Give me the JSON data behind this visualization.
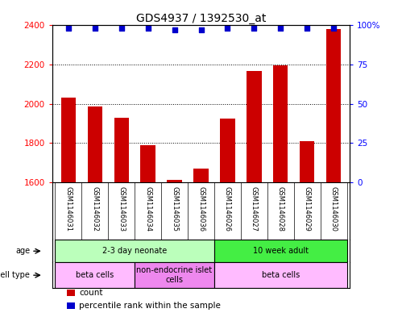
{
  "title": "GDS4937 / 1392530_at",
  "samples": [
    "GSM1146031",
    "GSM1146032",
    "GSM1146033",
    "GSM1146034",
    "GSM1146035",
    "GSM1146036",
    "GSM1146026",
    "GSM1146027",
    "GSM1146028",
    "GSM1146029",
    "GSM1146030"
  ],
  "counts": [
    2030,
    1985,
    1930,
    1790,
    1610,
    1670,
    1925,
    2165,
    2195,
    1810,
    2380
  ],
  "percentiles": [
    98,
    98,
    98,
    98,
    97,
    97,
    98,
    98,
    98,
    98,
    98
  ],
  "ylim_left": [
    1600,
    2400
  ],
  "ylim_right": [
    0,
    100
  ],
  "yticks_left": [
    1600,
    1800,
    2000,
    2200,
    2400
  ],
  "yticks_right": [
    0,
    25,
    50,
    75,
    100
  ],
  "bar_color": "#cc0000",
  "dot_color": "#0000cc",
  "age_groups": [
    {
      "label": "2-3 day neonate",
      "start": 0,
      "end": 6,
      "color": "#bbffbb"
    },
    {
      "label": "10 week adult",
      "start": 6,
      "end": 11,
      "color": "#44ee44"
    }
  ],
  "cell_type_groups": [
    {
      "label": "beta cells",
      "start": 0,
      "end": 3,
      "color": "#ffbbff"
    },
    {
      "label": "non-endocrine islet\ncells",
      "start": 3,
      "end": 6,
      "color": "#ee88ee"
    },
    {
      "label": "beta cells",
      "start": 6,
      "end": 11,
      "color": "#ffbbff"
    }
  ],
  "title_fontsize": 10,
  "tick_fontsize": 7.5,
  "bar_width": 0.55,
  "legend_items": [
    {
      "color": "#cc0000",
      "label": "count"
    },
    {
      "color": "#0000cc",
      "label": "percentile rank within the sample"
    }
  ]
}
